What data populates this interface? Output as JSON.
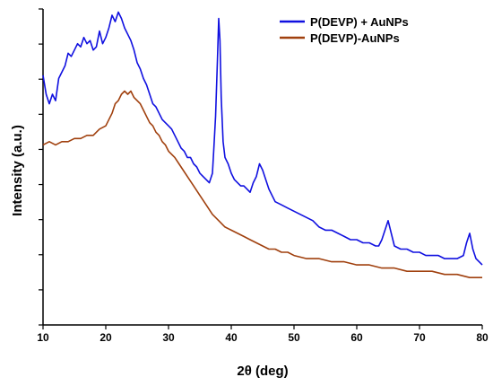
{
  "chart_data": {
    "type": "line",
    "xlabel": "2θ (deg)",
    "ylabel": "Intensity (a.u.)",
    "xlim": [
      10,
      80
    ],
    "ylim": [
      0,
      100
    ],
    "x_ticks": [
      "10",
      "20",
      "30",
      "40",
      "50",
      "60",
      "70",
      "80"
    ],
    "y_ticks_labeled": false,
    "grid": false,
    "legend_position": "top-right",
    "series": [
      {
        "name": "P(DEVP) + AuNPs",
        "color": "#1010e0",
        "x": [
          10,
          10.5,
          11,
          11.5,
          12,
          12.5,
          13,
          13.5,
          14,
          14.5,
          15,
          15.5,
          16,
          16.5,
          17,
          17.5,
          18,
          18.5,
          19,
          19.5,
          20,
          20.5,
          21,
          21.5,
          22,
          22.5,
          23,
          23.5,
          24,
          24.5,
          25,
          25.5,
          26,
          26.5,
          27,
          27.5,
          28,
          28.5,
          29,
          29.5,
          30,
          30.5,
          31,
          31.5,
          32,
          32.5,
          33,
          33.5,
          34,
          34.5,
          35,
          35.5,
          36,
          36.5,
          37,
          37.2,
          37.5,
          37.8,
          38.0,
          38.2,
          38.4,
          38.7,
          39,
          39.5,
          40,
          40.5,
          41,
          41.5,
          42,
          42.5,
          43,
          43.5,
          44,
          44.5,
          45,
          45.5,
          46,
          46.5,
          47,
          48,
          49,
          50,
          51,
          52,
          53,
          54,
          55,
          56,
          57,
          58,
          59,
          60,
          61,
          62,
          63,
          63.5,
          64,
          64.5,
          65,
          65.5,
          66,
          67,
          68,
          69,
          70,
          71,
          72,
          73,
          74,
          75,
          76,
          77,
          77.5,
          78,
          78.5,
          79,
          79.5,
          80
        ],
        "y": [
          79,
          73,
          70,
          73,
          71,
          78,
          80,
          82,
          86,
          85,
          87,
          89,
          88,
          91,
          89,
          90,
          87,
          88,
          93,
          89,
          91,
          94,
          98,
          96,
          99,
          97,
          94,
          92,
          90,
          87,
          83,
          81,
          78,
          76,
          73,
          70,
          69,
          67,
          65,
          64,
          63,
          62,
          60,
          58,
          56,
          55,
          53,
          53,
          51,
          50,
          48,
          47,
          46,
          45,
          48,
          55,
          66,
          84,
          97,
          90,
          72,
          58,
          53,
          51,
          48,
          46,
          45,
          44,
          44,
          43,
          42,
          45,
          47,
          51,
          49,
          46,
          43,
          41,
          39,
          38,
          37,
          36,
          35,
          34,
          33,
          31,
          30,
          30,
          29,
          28,
          27,
          27,
          26,
          26,
          25,
          25,
          27,
          30,
          33,
          29,
          25,
          24,
          24,
          23,
          23,
          22,
          22,
          22,
          21,
          21,
          21,
          22,
          26,
          29,
          24,
          21,
          20,
          19
        ]
      },
      {
        "name": "P(DEVP)-AuNPs",
        "color": "#a0400e",
        "x": [
          10,
          11,
          12,
          13,
          14,
          15,
          16,
          17,
          18,
          19,
          20,
          20.5,
          21,
          21.5,
          22,
          22.5,
          23,
          23.5,
          24,
          24.5,
          25,
          25.5,
          26,
          26.5,
          27,
          27.5,
          28,
          28.5,
          29,
          29.5,
          30,
          31,
          32,
          33,
          34,
          35,
          36,
          37,
          38,
          39,
          40,
          41,
          42,
          43,
          44,
          45,
          46,
          47,
          48,
          49,
          50,
          52,
          54,
          56,
          58,
          60,
          62,
          64,
          66,
          68,
          70,
          72,
          74,
          76,
          78,
          80
        ],
        "y": [
          57,
          58,
          57,
          58,
          58,
          59,
          59,
          60,
          60,
          62,
          63,
          65,
          67,
          70,
          71,
          73,
          74,
          73,
          74,
          72,
          71,
          70,
          68,
          66,
          64,
          63,
          61,
          60,
          58,
          57,
          55,
          53,
          50,
          47,
          44,
          41,
          38,
          35,
          33,
          31,
          30,
          29,
          28,
          27,
          26,
          25,
          24,
          24,
          23,
          23,
          22,
          21,
          21,
          20,
          20,
          19,
          19,
          18,
          18,
          17,
          17,
          17,
          16,
          16,
          15,
          15
        ]
      }
    ]
  }
}
